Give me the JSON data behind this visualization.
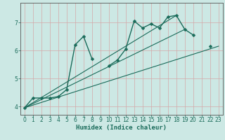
{
  "title": "",
  "xlabel": "Humidex (Indice chaleur)",
  "ylabel": "",
  "bg_color": "#cce8e4",
  "line_color": "#1a6b5a",
  "xlim": [
    -0.5,
    23.5
  ],
  "ylim": [
    3.7,
    7.7
  ],
  "yticks": [
    4,
    5,
    6,
    7
  ],
  "xticks": [
    0,
    1,
    2,
    3,
    4,
    5,
    6,
    7,
    8,
    9,
    10,
    11,
    12,
    13,
    14,
    15,
    16,
    17,
    18,
    19,
    20,
    21,
    22,
    23
  ],
  "series_main": {
    "x": [
      0,
      1,
      2,
      3,
      4,
      5,
      6,
      7,
      8,
      10,
      11,
      12,
      13,
      14,
      15,
      16,
      17,
      18,
      19,
      20,
      22
    ],
    "y": [
      3.95,
      4.3,
      4.3,
      4.3,
      4.35,
      4.6,
      6.2,
      6.5,
      5.7,
      5.45,
      5.65,
      6.05,
      7.05,
      6.8,
      6.95,
      6.8,
      7.2,
      7.25,
      6.75,
      6.55,
      6.15
    ],
    "breaks_before": [
      10,
      22
    ],
    "marker": "D",
    "markersize": 2.5,
    "linewidth": 1.0
  },
  "trend_lines": [
    {
      "x": [
        0,
        23
      ],
      "y": [
        3.95,
        6.15
      ]
    },
    {
      "x": [
        0,
        19
      ],
      "y": [
        3.95,
        6.75
      ]
    },
    {
      "x": [
        0,
        18
      ],
      "y": [
        3.95,
        7.25
      ]
    }
  ]
}
